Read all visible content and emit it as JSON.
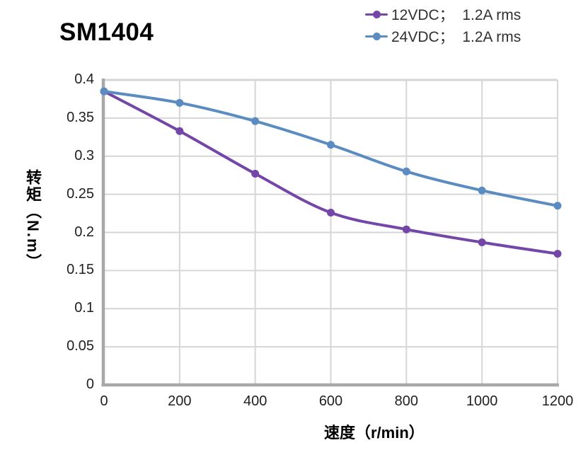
{
  "title": "SM1404",
  "legend": [
    {
      "label": "12VDC；  1.2A rms",
      "color": "#7346A8"
    },
    {
      "label": "24VDC；  1.2A rms",
      "color": "#5A8CC2"
    }
  ],
  "axes": {
    "y_title": "转矩（N.m）",
    "x_title": "速度（r/min）",
    "y_tick_labels": [
      "0",
      "0.05",
      "0.1",
      "0.15",
      "0.2",
      "0.25",
      "0.3",
      "0.35",
      "0.4"
    ],
    "x_tick_labels": [
      "0",
      "200",
      "400",
      "600",
      "800",
      "1000",
      "1200"
    ]
  },
  "chart_data": {
    "type": "line",
    "title": "SM1404",
    "xlabel": "速度（r/min）",
    "ylabel": "转矩（N.m）",
    "x": [
      0,
      200,
      400,
      600,
      800,
      1000,
      1200
    ],
    "series": [
      {
        "name": "12VDC；1.2A rms",
        "color": "#7346A8",
        "values": [
          0.385,
          0.333,
          0.277,
          0.226,
          0.204,
          0.187,
          0.172
        ]
      },
      {
        "name": "24VDC；1.2A rms",
        "color": "#5A8CC2",
        "values": [
          0.385,
          0.37,
          0.346,
          0.315,
          0.28,
          0.255,
          0.235
        ]
      }
    ],
    "xlim": [
      0,
      1200
    ],
    "ylim": [
      0,
      0.4
    ],
    "x_ticks": [
      0,
      200,
      400,
      600,
      800,
      1000,
      1200
    ],
    "y_ticks": [
      0,
      0.05,
      0.1,
      0.15,
      0.2,
      0.25,
      0.3,
      0.35,
      0.4
    ],
    "grid": true,
    "legend_position": "top-right",
    "marker": "circle",
    "line_smooth": true,
    "colors": {
      "grid": "#D6D6D9",
      "axis": "#A8A8AB",
      "tick_text": "#1f1f1f",
      "title_text": "#000000"
    }
  }
}
